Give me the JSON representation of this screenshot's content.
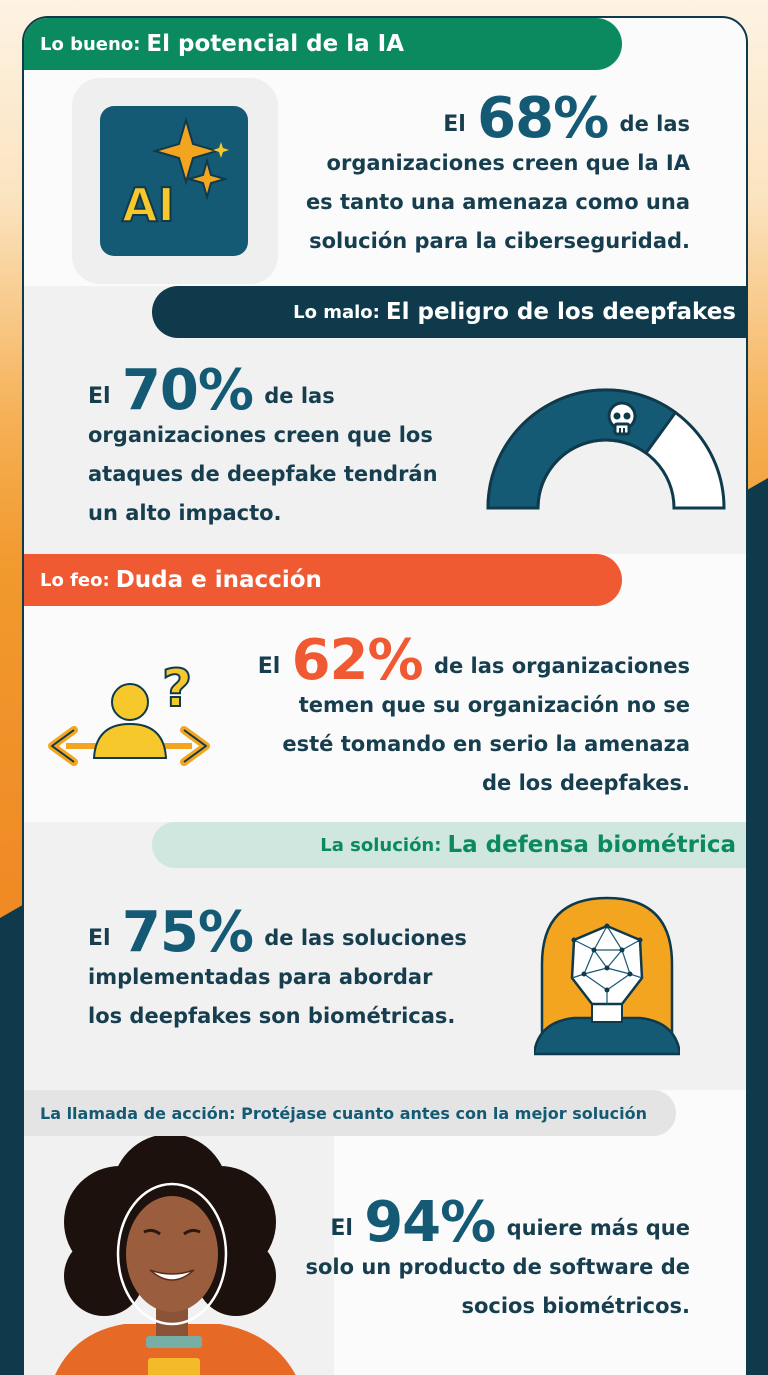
{
  "colors": {
    "navy": "#0f3a4c",
    "teal": "#155a74",
    "green": "#0a8a5e",
    "orange": "#ef5a33",
    "mint": "#cfe7df",
    "gray_pill": "#e4e4e4",
    "amber": "#f3a51f",
    "yellow": "#f7c82b"
  },
  "sections": [
    {
      "label_small": "Lo bueno:",
      "label_big": "El potencial de la IA",
      "stat_prefix": "El",
      "stat_value": "68%",
      "stat_suffix": "de las",
      "stat_lines": [
        "organizaciones creen que la IA",
        "es tanto una amenaza como una",
        "solución para la ciberseguridad."
      ],
      "icon": "ai-sparkle-icon",
      "icon_text": "AI"
    },
    {
      "label_small": "Lo malo:",
      "label_big": "El peligro de los deepfakes",
      "stat_prefix": "El",
      "stat_value": "70%",
      "stat_suffix": "de las",
      "stat_lines": [
        "organizaciones creen que los",
        "ataques de deepfake tendrán",
        "un alto impacto."
      ],
      "icon": "skull-gauge-icon",
      "gauge_fraction": 0.7
    },
    {
      "label_small": "Lo feo:",
      "label_big": "Duda e inacción",
      "stat_prefix": "El",
      "stat_value": "62%",
      "stat_suffix": "de las organizaciones",
      "stat_lines": [
        "temen que su organización no se",
        "esté tomando en serio la amenaza",
        "de los deepfakes."
      ],
      "icon": "confused-person-arrows-icon"
    },
    {
      "label_small": "La solución:",
      "label_big": "La defensa biométrica",
      "stat_prefix": "El",
      "stat_value": "75%",
      "stat_suffix": "de las soluciones",
      "stat_lines": [
        "implementadas para abordar",
        "los deepfakes son biométricas."
      ],
      "icon": "face-scan-icon"
    },
    {
      "label_text": "La llamada de acción: Protéjase cuanto antes con la mejor solución",
      "stat_prefix": "El",
      "stat_value": "94%",
      "stat_suffix": "quiere más que",
      "stat_lines": [
        "solo un producto de software de",
        "socios biométricos."
      ],
      "icon": "woman-face-scan-photo"
    }
  ]
}
